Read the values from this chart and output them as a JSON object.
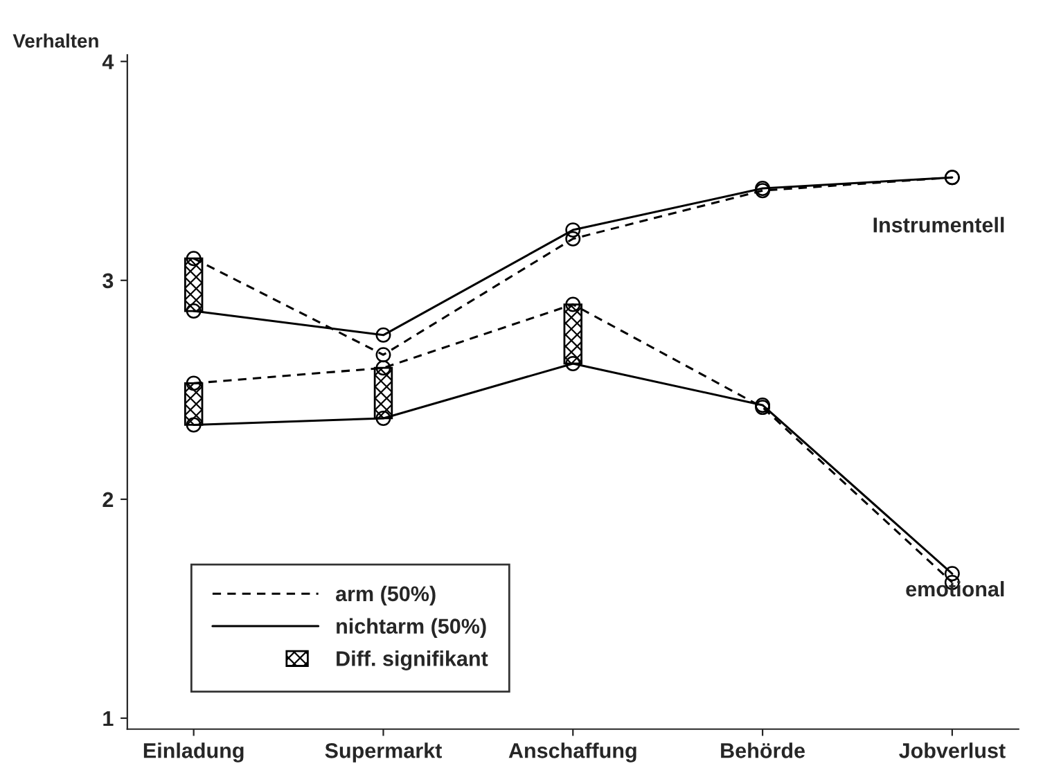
{
  "chart_data": {
    "type": "line",
    "ylabel": "Verhalten",
    "categories": [
      "Einladung",
      "Supermarkt",
      "Anschaffung",
      "Behörde",
      "Jobverlust"
    ],
    "ylim": [
      0.95,
      4.03
    ],
    "yticks": [
      1,
      2,
      3,
      4
    ],
    "marker": "circle",
    "grid": false,
    "legend": "bottom left",
    "series": [
      {
        "name": "arm (50%)",
        "color": "#000000",
        "line_style": "dashed",
        "values": [
          3.1,
          2.66,
          3.19,
          3.41,
          3.47
        ]
      },
      {
        "name": "nichtarm (50%)",
        "color": "#000000",
        "line_style": "solid",
        "values": [
          2.86,
          2.75,
          3.23,
          3.42,
          3.47
        ]
      },
      {
        "color": "#000000",
        "line_style": "dashed",
        "values": [
          2.53,
          2.6,
          2.89,
          2.42,
          1.62
        ]
      },
      {
        "color": "#000000",
        "line_style": "solid",
        "values": [
          2.34,
          2.37,
          2.62,
          2.43,
          1.66
        ]
      },
      {
        "name": "Diff. signifikant",
        "type": "bar",
        "color": "#000000",
        "base": [
          2.86,
          null,
          null,
          null,
          null
        ],
        "values": [
          0.24,
          null,
          null,
          null,
          null
        ]
      },
      {
        "type": "bar",
        "color": "#000000",
        "base": [
          2.34,
          2.37,
          2.62,
          null,
          null
        ],
        "values": [
          0.19,
          0.23,
          0.27,
          null,
          null
        ]
      }
    ],
    "annotations": [
      "Instrumentell",
      "emotional"
    ]
  }
}
